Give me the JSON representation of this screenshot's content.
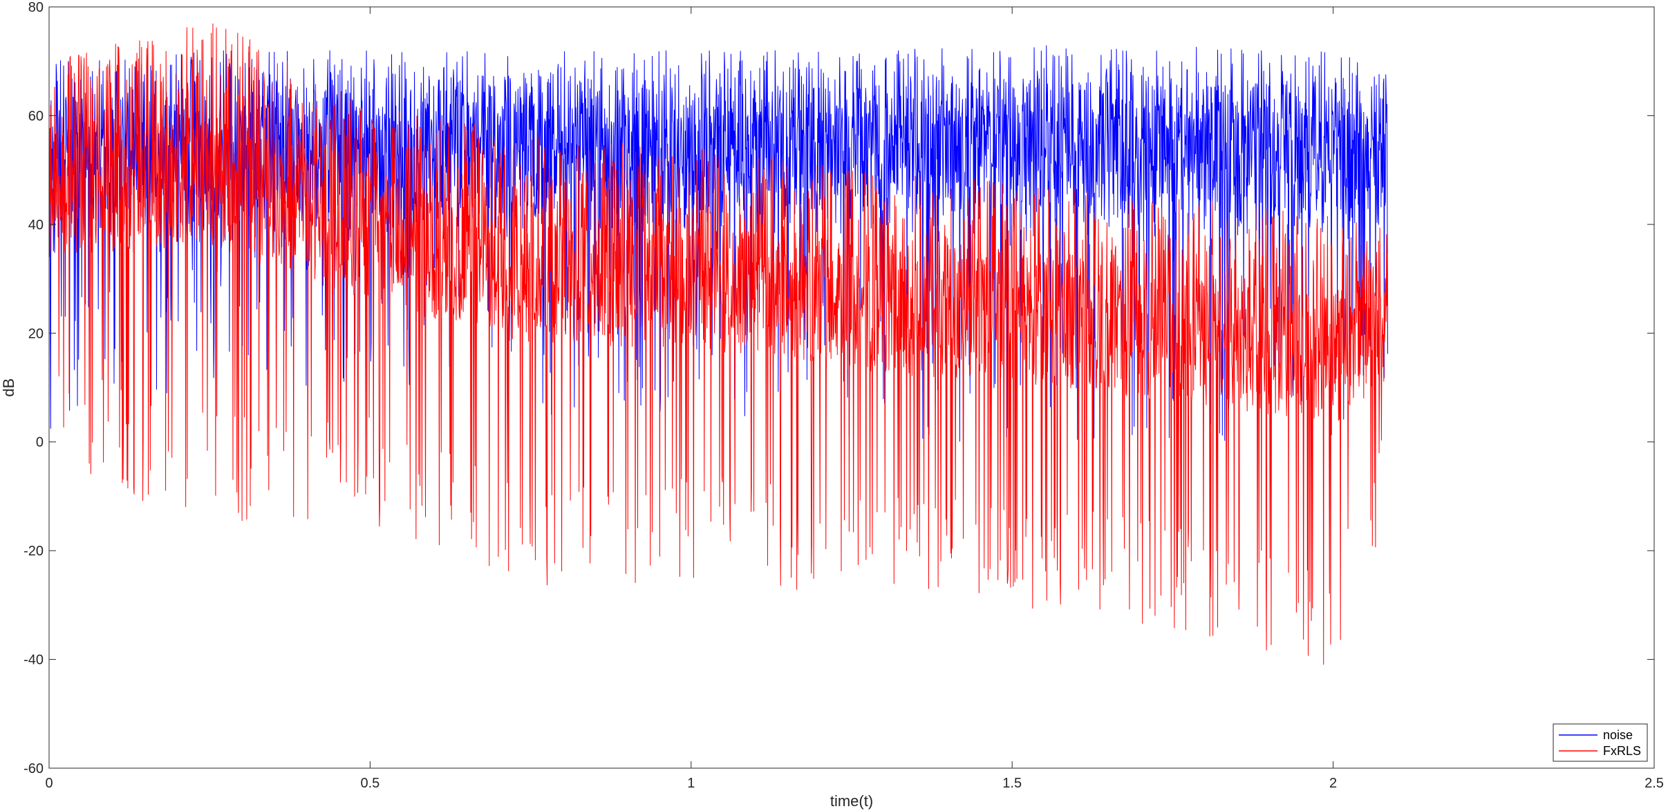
{
  "chart_data": {
    "type": "line",
    "title": "",
    "xlabel": "time(t)",
    "ylabel": "dB",
    "xlim": [
      0,
      2.5
    ],
    "ylim": [
      -60,
      80
    ],
    "xticks": [
      0,
      0.5,
      1,
      1.5,
      2,
      2.5
    ],
    "xtick_labels": [
      "0",
      "0.5",
      "1",
      "1.5",
      "2",
      "2.5"
    ],
    "yticks": [
      -60,
      -40,
      -20,
      0,
      20,
      40,
      60,
      80
    ],
    "ytick_labels": [
      "-60",
      "-40",
      "-20",
      "0",
      "20",
      "40",
      "60",
      "80"
    ],
    "grid": false,
    "legend_position": "bottom-right",
    "x_end": 2.085,
    "series": [
      {
        "name": "noise",
        "color": "#0000ff",
        "envelope_t": [
          0,
          0.25,
          0.5,
          0.75,
          1.0,
          1.25,
          1.5,
          1.75,
          2.0,
          2.085
        ],
        "envelope_upper": [
          70,
          72,
          72,
          72,
          72,
          72,
          73,
          73,
          72,
          70
        ],
        "envelope_lower": [
          0,
          10,
          10,
          5,
          5,
          0,
          0,
          0,
          0,
          5
        ],
        "typical_range": [
          40,
          65
        ]
      },
      {
        "name": "FxRLS",
        "color": "#ff0000",
        "envelope_t": [
          0,
          0.25,
          0.5,
          0.75,
          1.0,
          1.25,
          1.5,
          1.75,
          2.0,
          2.085
        ],
        "envelope_upper": [
          70,
          78,
          62,
          57,
          55,
          50,
          48,
          45,
          42,
          40
        ],
        "envelope_lower": [
          -5,
          -15,
          -15,
          -28,
          -25,
          -30,
          -30,
          -35,
          -42,
          -15
        ],
        "typical_range": [
          20,
          50
        ]
      }
    ]
  }
}
